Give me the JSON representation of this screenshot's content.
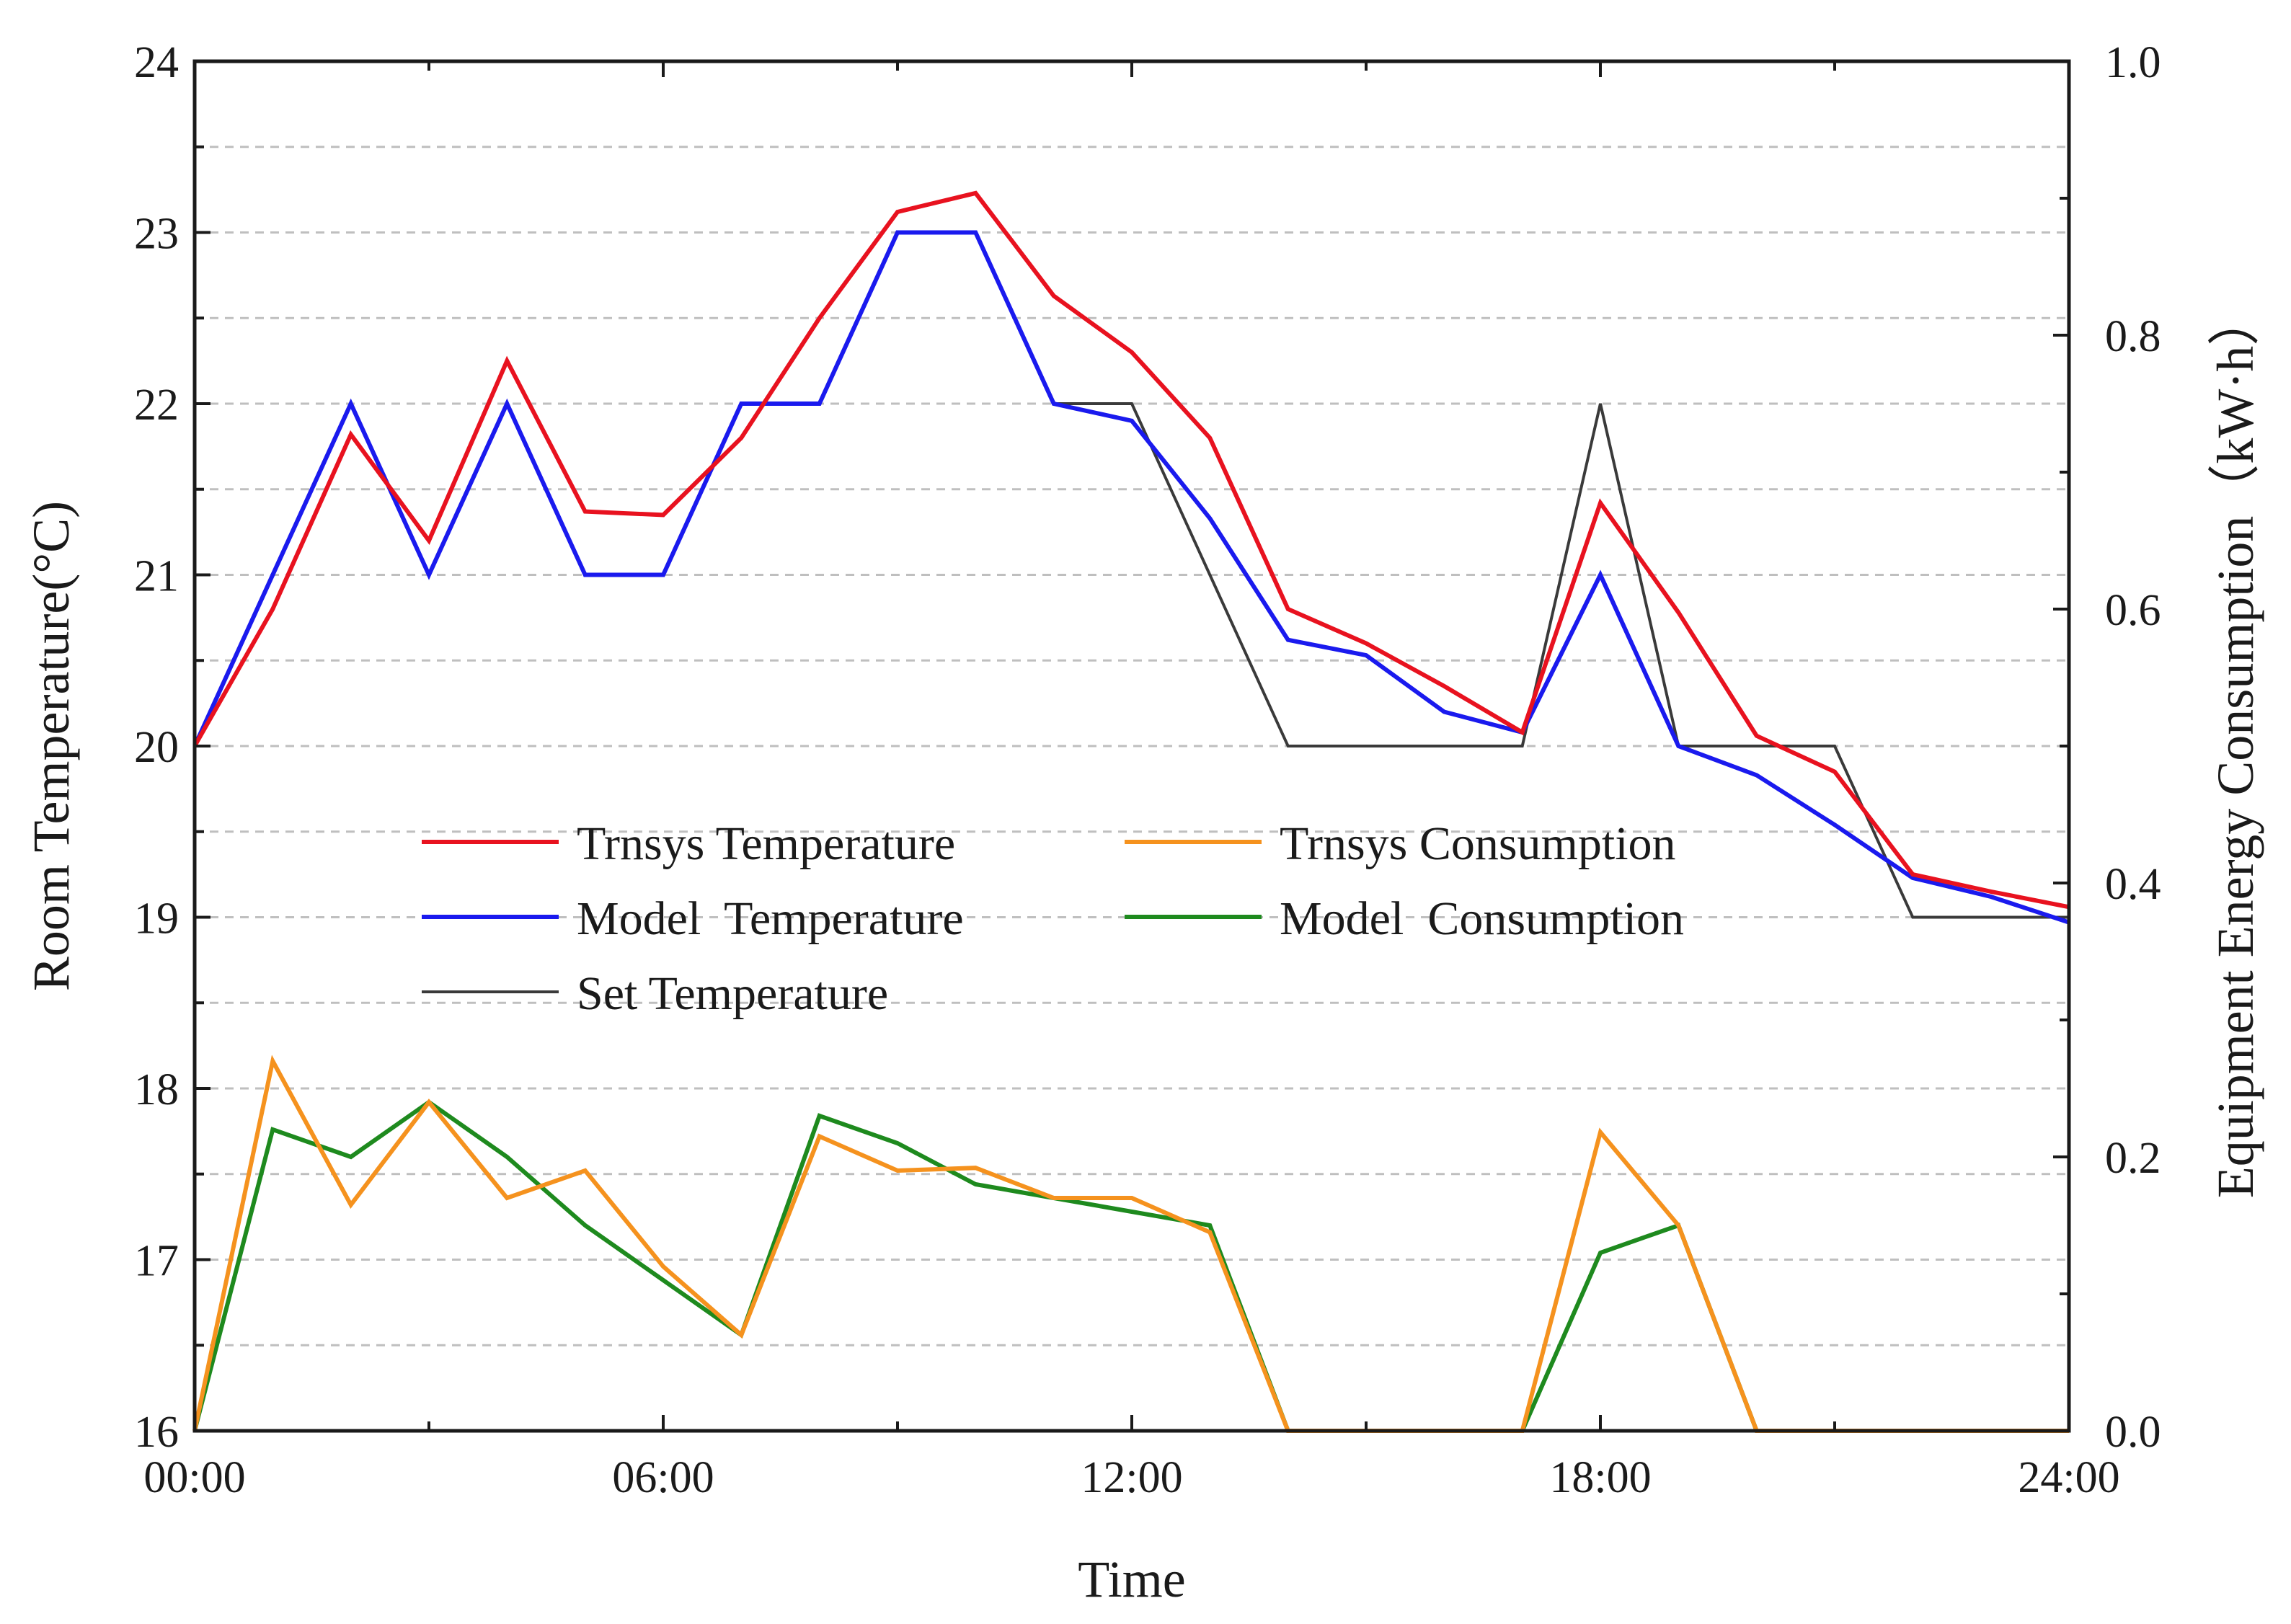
{
  "chart_data": {
    "type": "line",
    "xlabel": "Time",
    "ylabel_left": "Room Temperature(°C)",
    "ylabel_right": "Equipment Energy Consumption（kW·h）",
    "x_ticks": [
      "00:00",
      "06:00",
      "12:00",
      "18:00",
      "24:00"
    ],
    "xlim": [
      0,
      24
    ],
    "ylim_left": [
      16,
      24
    ],
    "y_ticks_left": [
      "16",
      "17",
      "18",
      "19",
      "20",
      "21",
      "22",
      "23",
      "24"
    ],
    "ylim_right": [
      0,
      1.0
    ],
    "y_ticks_right": [
      "0.0",
      "0.2",
      "0.4",
      "0.6",
      "0.8",
      "1.0"
    ],
    "grid": true,
    "legend": {
      "position": "center-left",
      "entries": [
        "Trnsys Temperature",
        "Model  Temperature",
        "Set Temperature",
        "Trnsys Consumption",
        "Model  Consumption"
      ]
    },
    "x": [
      0,
      1,
      2,
      3,
      4,
      5,
      6,
      7,
      8,
      9,
      10,
      11,
      12,
      13,
      14,
      15,
      16,
      17,
      18,
      19,
      20,
      21,
      22,
      23,
      24
    ],
    "series": [
      {
        "name": "Trnsys Temperature",
        "axis": "left",
        "color": "#e8121f",
        "values": [
          20.0,
          20.8,
          21.82,
          21.2,
          22.25,
          21.37,
          21.35,
          21.8,
          22.5,
          23.12,
          23.23,
          22.63,
          22.3,
          21.8,
          20.8,
          20.6,
          20.35,
          20.08,
          21.42,
          20.78,
          20.06,
          19.85,
          19.25,
          19.15,
          19.06
        ]
      },
      {
        "name": "Model  Temperature",
        "axis": "left",
        "color": "#1a1aee",
        "values": [
          20.0,
          21.0,
          22.0,
          21.0,
          22.0,
          21.0,
          21.0,
          22.0,
          22.0,
          23.0,
          23.0,
          22.0,
          21.9,
          21.33,
          20.62,
          20.53,
          20.2,
          20.08,
          21.0,
          20.0,
          19.83,
          19.54,
          19.23,
          19.12,
          18.97
        ]
      },
      {
        "name": "Set Temperature",
        "axis": "left",
        "color": "#3a3a3a",
        "values": [
          20,
          21,
          22,
          21,
          22,
          21,
          21,
          22,
          22,
          23,
          23,
          22,
          22,
          21,
          20,
          20,
          20,
          20,
          22,
          20,
          20,
          20,
          19,
          19,
          19
        ]
      },
      {
        "name": "Trnsys Consumption",
        "axis": "right",
        "color": "#f5921e",
        "values": [
          0.0,
          0.27,
          0.165,
          0.24,
          0.17,
          0.19,
          0.12,
          0.07,
          0.215,
          0.19,
          0.192,
          0.17,
          0.17,
          0.145,
          0.0,
          0.0,
          0.0,
          0.0,
          0.218,
          0.15,
          0.0,
          0.0,
          0.0,
          0.0,
          0.0
        ]
      },
      {
        "name": "Model  Consumption",
        "axis": "right",
        "color": "#1e8a1e",
        "values": [
          0.0,
          0.22,
          0.2,
          0.24,
          0.2,
          0.15,
          0.11,
          0.07,
          0.23,
          0.21,
          0.18,
          0.17,
          0.16,
          0.15,
          0.0,
          0.0,
          0.0,
          0.0,
          0.13,
          0.15,
          0.0,
          0.0,
          0.0,
          0.0,
          0.0
        ]
      }
    ]
  }
}
